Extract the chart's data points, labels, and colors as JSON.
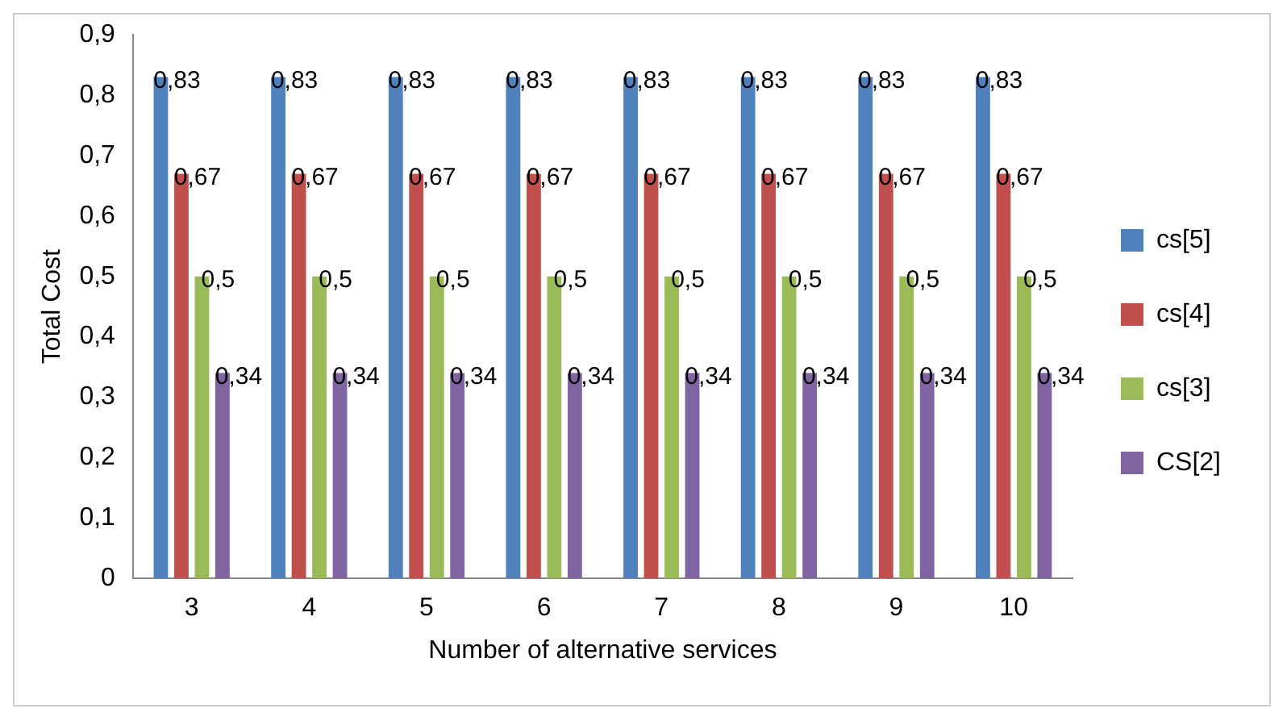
{
  "chart_data": {
    "type": "bar",
    "xlabel": "Number of alternative services",
    "ylabel": "Total Cost",
    "categories": [
      "3",
      "4",
      "5",
      "6",
      "7",
      "8",
      "9",
      "10"
    ],
    "series": [
      {
        "name": "cs[5]",
        "color": "#4f81bd",
        "values": [
          0.83,
          0.83,
          0.83,
          0.83,
          0.83,
          0.83,
          0.83,
          0.83
        ],
        "value_labels": [
          "0,83",
          "0,83",
          "0,83",
          "0,83",
          "0,83",
          "0,83",
          "0,83",
          "0,83"
        ]
      },
      {
        "name": "cs[4]",
        "color": "#c0504d",
        "values": [
          0.67,
          0.67,
          0.67,
          0.67,
          0.67,
          0.67,
          0.67,
          0.67
        ],
        "value_labels": [
          "0,67",
          "0,67",
          "0,67",
          "0,67",
          "0,67",
          "0,67",
          "0,67",
          "0,67"
        ]
      },
      {
        "name": "cs[3]",
        "color": "#9bbb59",
        "values": [
          0.5,
          0.5,
          0.5,
          0.5,
          0.5,
          0.5,
          0.5,
          0.5
        ],
        "value_labels": [
          "0,5",
          "0,5",
          "0,5",
          "0,5",
          "0,5",
          "0,5",
          "0,5",
          "0,5"
        ]
      },
      {
        "name": "CS[2]",
        "color": "#8064a2",
        "values": [
          0.34,
          0.34,
          0.34,
          0.34,
          0.34,
          0.34,
          0.34,
          0.34
        ],
        "value_labels": [
          "0,34",
          "0,34",
          "0,34",
          "0,34",
          "0,34",
          "0,34",
          "0,34",
          "0,34"
        ]
      }
    ],
    "ylim": [
      0,
      0.9
    ],
    "yticks": [
      {
        "value": 0,
        "label": "0"
      },
      {
        "value": 0.1,
        "label": "0,1"
      },
      {
        "value": 0.2,
        "label": "0,2"
      },
      {
        "value": 0.3,
        "label": "0,3"
      },
      {
        "value": 0.4,
        "label": "0,4"
      },
      {
        "value": 0.5,
        "label": "0,5"
      },
      {
        "value": 0.6,
        "label": "0,6"
      },
      {
        "value": 0.7,
        "label": "0,7"
      },
      {
        "value": 0.8,
        "label": "0,8"
      },
      {
        "value": 0.9,
        "label": "0,9"
      }
    ],
    "grid": false,
    "legend": "right"
  }
}
